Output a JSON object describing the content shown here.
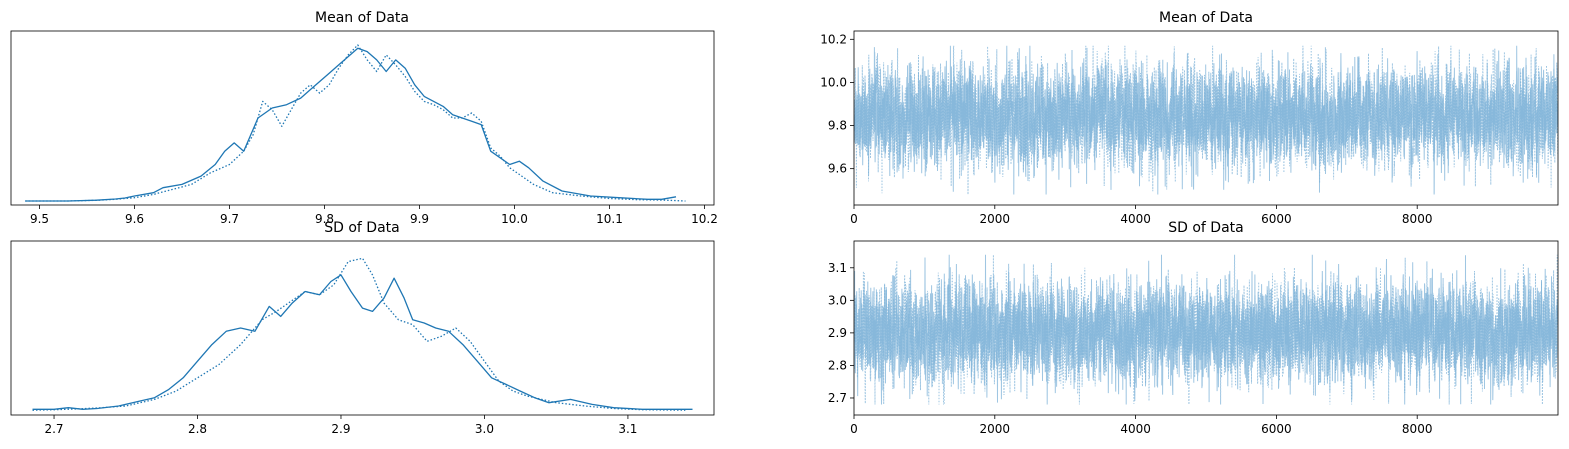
{
  "colors": {
    "series": "#1f77b4",
    "trace": "#7fb3d8",
    "axis": "#000000",
    "background": "#ffffff"
  },
  "chart_data": [
    {
      "id": "mean-kde",
      "type": "line",
      "title": "Mean of Data",
      "xlabel": "",
      "ylabel": "",
      "xlim": [
        9.47,
        10.21
      ],
      "ylim": [
        0,
        1.0
      ],
      "xticks": [
        9.5,
        9.6,
        9.7,
        9.8,
        9.9,
        10.0,
        10.1,
        10.2
      ],
      "xtick_labels": [
        "9.5",
        "9.6",
        "9.7",
        "9.8",
        "9.9",
        "10.0",
        "10.1",
        "10.2"
      ],
      "yticks_visible": false,
      "grid": false,
      "series": [
        {
          "style": "solid",
          "x": [
            9.485,
            9.53,
            9.56,
            9.58,
            9.59,
            9.6,
            9.62,
            9.63,
            9.65,
            9.67,
            9.685,
            9.695,
            9.705,
            9.715,
            9.73,
            9.745,
            9.76,
            9.775,
            9.785,
            9.795,
            9.805,
            9.815,
            9.825,
            9.835,
            9.845,
            9.855,
            9.865,
            9.875,
            9.885,
            9.895,
            9.905,
            9.915,
            9.925,
            9.935,
            9.945,
            9.955,
            9.965,
            9.975,
            9.985,
            9.995,
            10.005,
            10.015,
            10.03,
            10.05,
            10.08,
            10.11,
            10.14,
            10.155,
            10.17
          ],
          "y": [
            0.0,
            0.0,
            0.005,
            0.012,
            0.018,
            0.03,
            0.05,
            0.08,
            0.1,
            0.15,
            0.22,
            0.3,
            0.35,
            0.3,
            0.5,
            0.56,
            0.58,
            0.62,
            0.67,
            0.72,
            0.77,
            0.82,
            0.87,
            0.92,
            0.9,
            0.85,
            0.78,
            0.85,
            0.8,
            0.7,
            0.63,
            0.6,
            0.57,
            0.52,
            0.5,
            0.48,
            0.46,
            0.3,
            0.26,
            0.22,
            0.24,
            0.2,
            0.12,
            0.06,
            0.03,
            0.02,
            0.01,
            0.01,
            0.025
          ]
        },
        {
          "style": "dotted",
          "x": [
            9.485,
            9.53,
            9.56,
            9.58,
            9.6,
            9.62,
            9.64,
            9.66,
            9.68,
            9.7,
            9.715,
            9.725,
            9.735,
            9.745,
            9.755,
            9.765,
            9.775,
            9.785,
            9.795,
            9.805,
            9.815,
            9.825,
            9.835,
            9.845,
            9.855,
            9.865,
            9.875,
            9.885,
            9.895,
            9.905,
            9.915,
            9.925,
            9.935,
            9.945,
            9.955,
            9.965,
            9.975,
            9.985,
            9.995,
            10.005,
            10.02,
            10.04,
            10.07,
            10.1,
            10.13,
            10.16,
            10.18
          ],
          "y": [
            0.0,
            0.0,
            0.004,
            0.01,
            0.02,
            0.04,
            0.07,
            0.1,
            0.17,
            0.22,
            0.3,
            0.4,
            0.6,
            0.55,
            0.45,
            0.55,
            0.65,
            0.7,
            0.65,
            0.7,
            0.8,
            0.88,
            0.94,
            0.85,
            0.78,
            0.88,
            0.82,
            0.75,
            0.66,
            0.6,
            0.58,
            0.55,
            0.5,
            0.5,
            0.53,
            0.48,
            0.32,
            0.27,
            0.2,
            0.16,
            0.1,
            0.05,
            0.03,
            0.015,
            0.008,
            0.005,
            0.0
          ]
        }
      ]
    },
    {
      "id": "mean-trace",
      "type": "line",
      "title": "Mean of Data",
      "xlabel": "",
      "ylabel": "",
      "xlim": [
        0,
        10000
      ],
      "ylim": [
        9.45,
        10.22
      ],
      "xticks": [
        0,
        2000,
        4000,
        6000,
        8000
      ],
      "xtick_labels": [
        "0",
        "2000",
        "4000",
        "6000",
        "8000"
      ],
      "yticks": [
        9.6,
        9.8,
        10.0,
        10.2
      ],
      "ytick_labels": [
        "9.6",
        "9.8",
        "10.0",
        "10.2"
      ],
      "grid": false,
      "trace_center": 9.84,
      "trace_spread": 0.105,
      "trace_min": 9.48,
      "trace_max": 10.17,
      "n_draws": 10000,
      "series": [
        {
          "style": "solid"
        },
        {
          "style": "dotted"
        }
      ]
    },
    {
      "id": "sd-kde",
      "type": "line",
      "title": "SD of Data",
      "xlabel": "",
      "ylabel": "",
      "xlim": [
        2.67,
        3.16
      ],
      "ylim": [
        0,
        1.0
      ],
      "xticks": [
        2.7,
        2.8,
        2.9,
        3.0,
        3.1
      ],
      "xtick_labels": [
        "2.7",
        "2.8",
        "2.9",
        "3.0",
        "3.1"
      ],
      "yticks_visible": false,
      "grid": false,
      "series": [
        {
          "style": "solid",
          "x": [
            2.685,
            2.7,
            2.71,
            2.72,
            2.73,
            2.745,
            2.76,
            2.77,
            2.78,
            2.79,
            2.8,
            2.81,
            2.82,
            2.83,
            2.84,
            2.85,
            2.858,
            2.866,
            2.875,
            2.885,
            2.893,
            2.9,
            2.907,
            2.915,
            2.922,
            2.93,
            2.937,
            2.944,
            2.95,
            2.958,
            2.966,
            2.975,
            2.985,
            2.995,
            3.005,
            3.015,
            3.025,
            3.035,
            3.045,
            3.06,
            3.075,
            3.09,
            3.11,
            3.13,
            3.145
          ],
          "y": [
            0.01,
            0.01,
            0.02,
            0.01,
            0.015,
            0.03,
            0.06,
            0.08,
            0.13,
            0.2,
            0.3,
            0.4,
            0.48,
            0.5,
            0.48,
            0.63,
            0.57,
            0.65,
            0.72,
            0.7,
            0.78,
            0.82,
            0.72,
            0.62,
            0.6,
            0.68,
            0.8,
            0.68,
            0.55,
            0.53,
            0.5,
            0.48,
            0.4,
            0.3,
            0.2,
            0.16,
            0.12,
            0.08,
            0.05,
            0.07,
            0.04,
            0.02,
            0.01,
            0.01,
            0.01
          ]
        },
        {
          "style": "dotted",
          "x": [
            2.685,
            2.7,
            2.715,
            2.73,
            2.75,
            2.77,
            2.785,
            2.8,
            2.815,
            2.83,
            2.845,
            2.855,
            2.865,
            2.875,
            2.885,
            2.895,
            2.905,
            2.915,
            2.922,
            2.93,
            2.94,
            2.95,
            2.96,
            2.97,
            2.98,
            2.99,
            3.0,
            3.01,
            3.02,
            3.03,
            3.05,
            3.07,
            3.09,
            3.11,
            3.14
          ],
          "y": [
            0.005,
            0.008,
            0.012,
            0.018,
            0.03,
            0.07,
            0.12,
            0.2,
            0.28,
            0.4,
            0.55,
            0.6,
            0.66,
            0.72,
            0.7,
            0.76,
            0.9,
            0.92,
            0.82,
            0.65,
            0.55,
            0.52,
            0.42,
            0.45,
            0.5,
            0.42,
            0.3,
            0.18,
            0.12,
            0.09,
            0.05,
            0.03,
            0.015,
            0.008,
            0.005
          ]
        }
      ]
    },
    {
      "id": "sd-trace",
      "type": "line",
      "title": "SD of Data",
      "xlabel": "",
      "ylabel": "",
      "xlim": [
        0,
        10000
      ],
      "ylim": [
        2.66,
        3.17
      ],
      "xticks": [
        0,
        2000,
        4000,
        6000,
        8000
      ],
      "xtick_labels": [
        "0",
        "2000",
        "4000",
        "6000",
        "8000"
      ],
      "yticks": [
        2.7,
        2.8,
        2.9,
        3.0,
        3.1
      ],
      "ytick_labels": [
        "2.7",
        "2.8",
        "2.9",
        "3.0",
        "3.1"
      ],
      "grid": false,
      "trace_center": 2.9,
      "trace_spread": 0.07,
      "trace_min": 2.68,
      "trace_max": 3.14,
      "n_draws": 10000,
      "series": [
        {
          "style": "solid"
        },
        {
          "style": "dotted"
        }
      ]
    }
  ]
}
